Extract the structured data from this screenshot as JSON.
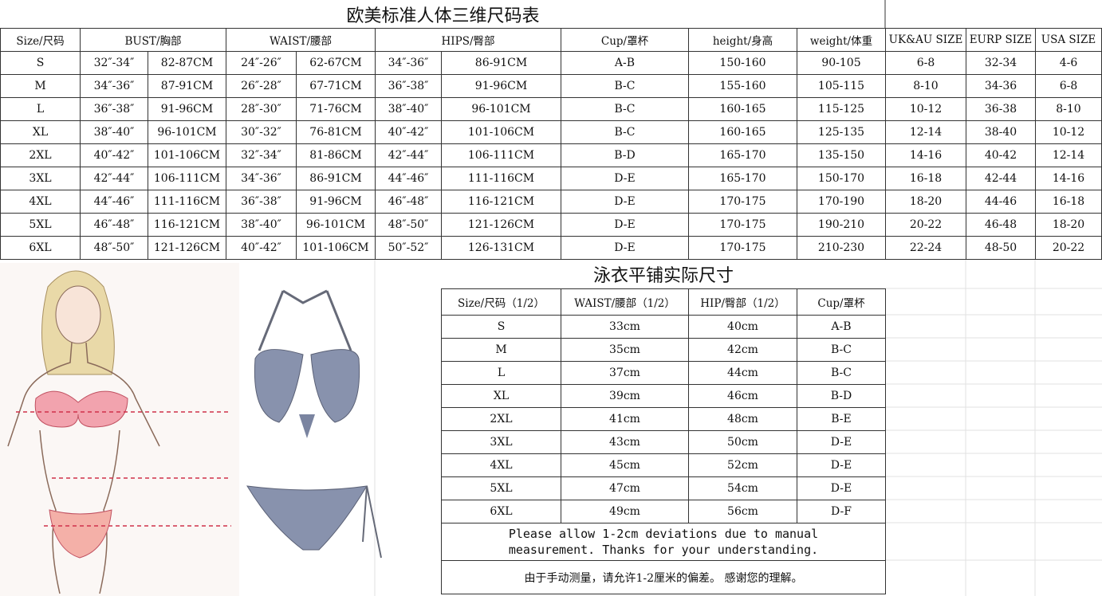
{
  "title": "欧美标准人体三维尺码表",
  "size_table": {
    "headers": [
      "Size/尺码",
      "BUST/胸部",
      "WAIST/腰部",
      "HIPS/臀部",
      "Cup/罩杯",
      "height/身高",
      "weight/体重",
      "UK&AU SIZE",
      "EURP SIZE",
      "USA SIZE"
    ],
    "rows": [
      [
        "S",
        "32″-34″",
        "82-87CM",
        "24″-26″",
        "62-67CM",
        "34″-36″",
        "86-91CM",
        "A-B",
        "150-160",
        "90-105",
        "6-8",
        "32-34",
        "4-6"
      ],
      [
        "M",
        "34″-36″",
        "87-91CM",
        "26″-28″",
        "67-71CM",
        "36″-38″",
        "91-96CM",
        "B-C",
        "155-160",
        "105-115",
        "8-10",
        "34-36",
        "6-8"
      ],
      [
        "L",
        "36″-38″",
        "91-96CM",
        "28″-30″",
        "71-76CM",
        "38″-40″",
        "96-101CM",
        "B-C",
        "160-165",
        "115-125",
        "10-12",
        "36-38",
        "8-10"
      ],
      [
        "XL",
        "38″-40″",
        "96-101CM",
        "30″-32″",
        "76-81CM",
        "40″-42″",
        "101-106CM",
        "B-C",
        "160-165",
        "125-135",
        "12-14",
        "38-40",
        "10-12"
      ],
      [
        "2XL",
        "40″-42″",
        "101-106CM",
        "32″-34″",
        "81-86CM",
        "42″-44″",
        "106-111CM",
        "B-D",
        "165-170",
        "135-150",
        "14-16",
        "40-42",
        "12-14"
      ],
      [
        "3XL",
        "42″-44″",
        "106-111CM",
        "34″-36″",
        "86-91CM",
        "44″-46″",
        "111-116CM",
        "D-E",
        "165-170",
        "150-170",
        "16-18",
        "42-44",
        "14-16"
      ],
      [
        "4XL",
        "44″-46″",
        "111-116CM",
        "36″-38″",
        "91-96CM",
        "46″-48″",
        "116-121CM",
        "D-E",
        "170-175",
        "170-190",
        "18-20",
        "44-46",
        "16-18"
      ],
      [
        "5XL",
        "46″-48″",
        "116-121CM",
        "38″-40″",
        "96-101CM",
        "48″-50″",
        "121-126CM",
        "D-E",
        "170-175",
        "190-210",
        "20-22",
        "46-48",
        "18-20"
      ],
      [
        "6XL",
        "48″-50″",
        "121-126CM",
        "40″-42″",
        "101-106CM",
        "50″-52″",
        "126-131CM",
        "D-E",
        "170-175",
        "210-230",
        "22-24",
        "48-50",
        "20-22"
      ]
    ]
  },
  "flat_title": "泳衣平铺实际尺寸",
  "flat_table": {
    "headers": [
      "Size/尺码（1/2）",
      "WAIST/腰部（1/2）",
      "HIP/臀部（1/2）",
      "Cup/罩杯"
    ],
    "rows": [
      [
        "S",
        "33cm",
        "40cm",
        "A-B"
      ],
      [
        "M",
        "35cm",
        "42cm",
        "B-C"
      ],
      [
        "L",
        "37cm",
        "44cm",
        "B-C"
      ],
      [
        "XL",
        "39cm",
        "46cm",
        "B-D"
      ],
      [
        "2XL",
        "41cm",
        "48cm",
        "B-E"
      ],
      [
        "3XL",
        "43cm",
        "50cm",
        "D-E"
      ],
      [
        "4XL",
        "45cm",
        "52cm",
        "D-E"
      ],
      [
        "5XL",
        "47cm",
        "54cm",
        "D-E"
      ],
      [
        "6XL",
        "49cm",
        "56cm",
        "D-F"
      ]
    ]
  },
  "note_en": [
    "Please allow 1-2cm deviations due to manual",
    "measurement. Thanks for your understanding."
  ],
  "note_zh": "由于手动测量，请允许1-2厘米的偏差。 感谢您的理解。"
}
